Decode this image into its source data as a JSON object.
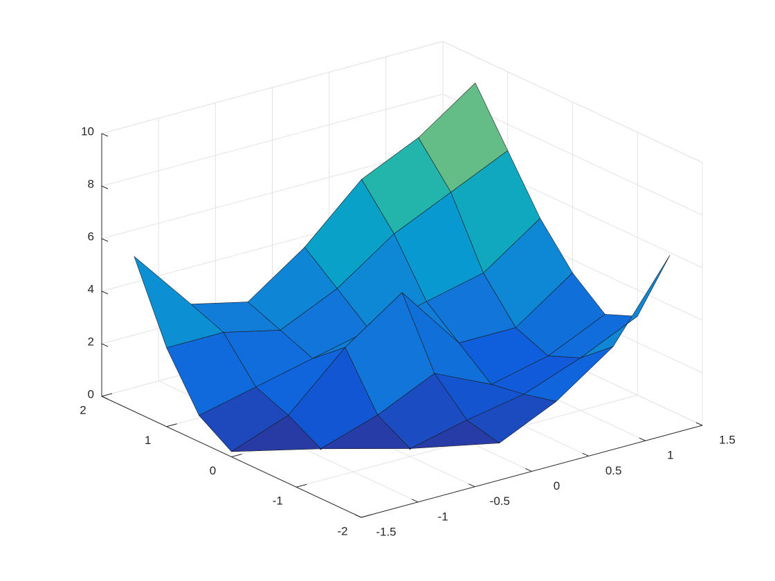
{
  "chart_data": {
    "type": "surface",
    "colormap": "parula",
    "grid": true,
    "xlim": [
      -1.5,
      1.5
    ],
    "ylim": [
      -2,
      2
    ],
    "zlim": [
      0,
      10
    ],
    "xticks": [
      -1.5,
      -1,
      -0.5,
      0,
      0.5,
      1,
      1.5
    ],
    "yticks": [
      -2,
      -1,
      0,
      1,
      2
    ],
    "zticks": [
      0,
      2,
      4,
      6,
      8,
      10
    ],
    "x": [
      -1.5,
      -1,
      -0.5,
      0,
      0.5,
      1,
      1.5
    ],
    "y": [
      -1.5,
      -1,
      -0.5,
      0,
      0.5,
      1,
      1.5
    ],
    "z": [
      [
        null,
        null,
        null,
        0.5,
        1.5,
        3,
        5.9
      ],
      [
        null,
        null,
        0.3,
        0.8,
        1.2,
        2,
        3
      ],
      [
        null,
        0.3,
        1,
        2,
        1,
        1.5,
        2.5
      ],
      [
        0.2,
        1,
        3,
        4.5,
        2,
        2,
        3.5
      ],
      [
        1,
        1.5,
        2,
        2.5,
        3,
        3.5,
        5
      ],
      [
        3,
        3,
        2.5,
        3.5,
        5,
        6,
        7
      ],
      [
        5.9,
        3.5,
        3,
        4.5,
        6.5,
        7.5,
        9
      ]
    ]
  }
}
